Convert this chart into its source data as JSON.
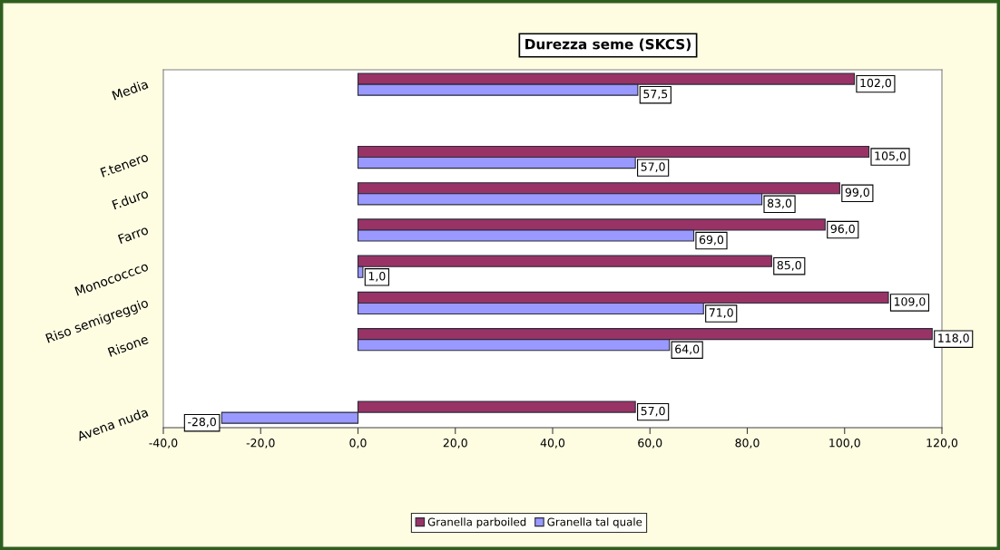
{
  "chart_data": {
    "type": "bar",
    "orientation": "horizontal",
    "title": "Durezza seme (SKCS)",
    "categories": [
      "Media",
      null,
      "F.tenero",
      "F.duro",
      "Farro",
      "Monococcco",
      "Riso semigreggio",
      "Risone",
      null,
      "Avena nuda"
    ],
    "series": [
      {
        "name": "Granella parboiled",
        "color": "#993366",
        "values": [
          102,
          null,
          105,
          99,
          96,
          85,
          109,
          118,
          null,
          57
        ],
        "value_labels": [
          "102,0",
          null,
          "105,0",
          "99,0",
          "96,0",
          "85,0",
          "109,0",
          "118,0",
          null,
          "57,0"
        ]
      },
      {
        "name": "Granella tal quale",
        "color": "#9999ff",
        "values": [
          57.5,
          null,
          57,
          83,
          69,
          1,
          71,
          64,
          null,
          -28
        ],
        "value_labels": [
          "57,5",
          null,
          "57,0",
          "83,0",
          "69,0",
          "1,0",
          "71,0",
          "64,0",
          null,
          "-28,0"
        ]
      }
    ],
    "xlim": [
      -40,
      120
    ],
    "xticks": [
      {
        "value": -40,
        "label": "-40,0"
      },
      {
        "value": -20,
        "label": "-20,0"
      },
      {
        "value": 0,
        "label": "0,0"
      },
      {
        "value": 20,
        "label": "20,0"
      },
      {
        "value": 40,
        "label": "40,0"
      },
      {
        "value": 60,
        "label": "60,0"
      },
      {
        "value": 80,
        "label": "80,0"
      },
      {
        "value": 100,
        "label": "100,0"
      },
      {
        "value": 120,
        "label": "120,0"
      }
    ],
    "legend": "bottom"
  }
}
